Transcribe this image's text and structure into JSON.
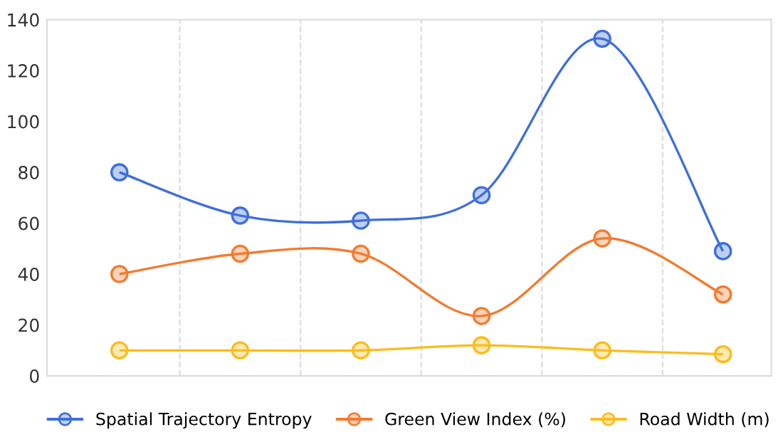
{
  "chart_data": {
    "type": "line",
    "categories": [
      null,
      null,
      null,
      null,
      null,
      null
    ],
    "ylim": [
      0,
      140
    ],
    "yticks": [
      0,
      20,
      40,
      60,
      80,
      100,
      120,
      140
    ],
    "tick_labels": "y",
    "grid": "x",
    "legend": "bottom",
    "marker": "circle",
    "line_style": "solid",
    "series": [
      {
        "name": "Spatial Trajectory Entropy",
        "color": "#3e6fd9",
        "values": [
          80,
          63,
          61,
          71,
          132.5,
          49
        ]
      },
      {
        "name": "Green View Index (%)",
        "color": "#f27b2f",
        "values": [
          40,
          48,
          48,
          23.5,
          54,
          32
        ]
      },
      {
        "name": "Road Width (m)",
        "color": "#fbbc1c",
        "values": [
          10,
          10,
          10,
          12,
          10,
          8.5
        ]
      }
    ]
  }
}
